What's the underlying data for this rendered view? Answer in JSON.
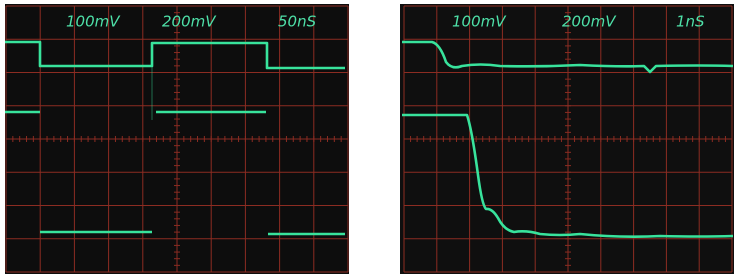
{
  "screens": [
    {
      "labels": [
        "100mV",
        "200mV",
        "50nS"
      ]
    },
    {
      "labels": [
        "100mV",
        "200mV",
        "1nS"
      ]
    }
  ]
}
